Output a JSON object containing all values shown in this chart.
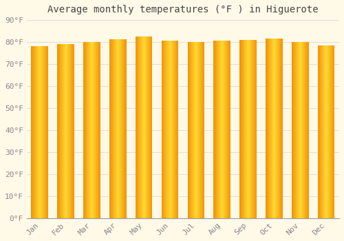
{
  "title": "Average monthly temperatures (°F ) in Higuerote",
  "categories": [
    "Jan",
    "Feb",
    "Mar",
    "Apr",
    "May",
    "Jun",
    "Jul",
    "Aug",
    "Sep",
    "Oct",
    "Nov",
    "Dec"
  ],
  "values": [
    78.1,
    79.0,
    80.1,
    81.3,
    82.6,
    80.6,
    80.1,
    80.6,
    81.0,
    81.5,
    80.1,
    78.6
  ],
  "background_color": "#FFF9E8",
  "grid_color": "#DDDDDD",
  "text_color": "#888888",
  "ylim": [
    0,
    90
  ],
  "yticks": [
    0,
    10,
    20,
    30,
    40,
    50,
    60,
    70,
    80,
    90
  ],
  "ytick_labels": [
    "0°F",
    "10°F",
    "20°F",
    "30°F",
    "40°F",
    "50°F",
    "60°F",
    "70°F",
    "80°F",
    "90°F"
  ],
  "title_fontsize": 10,
  "tick_fontsize": 8,
  "bar_width": 0.65
}
